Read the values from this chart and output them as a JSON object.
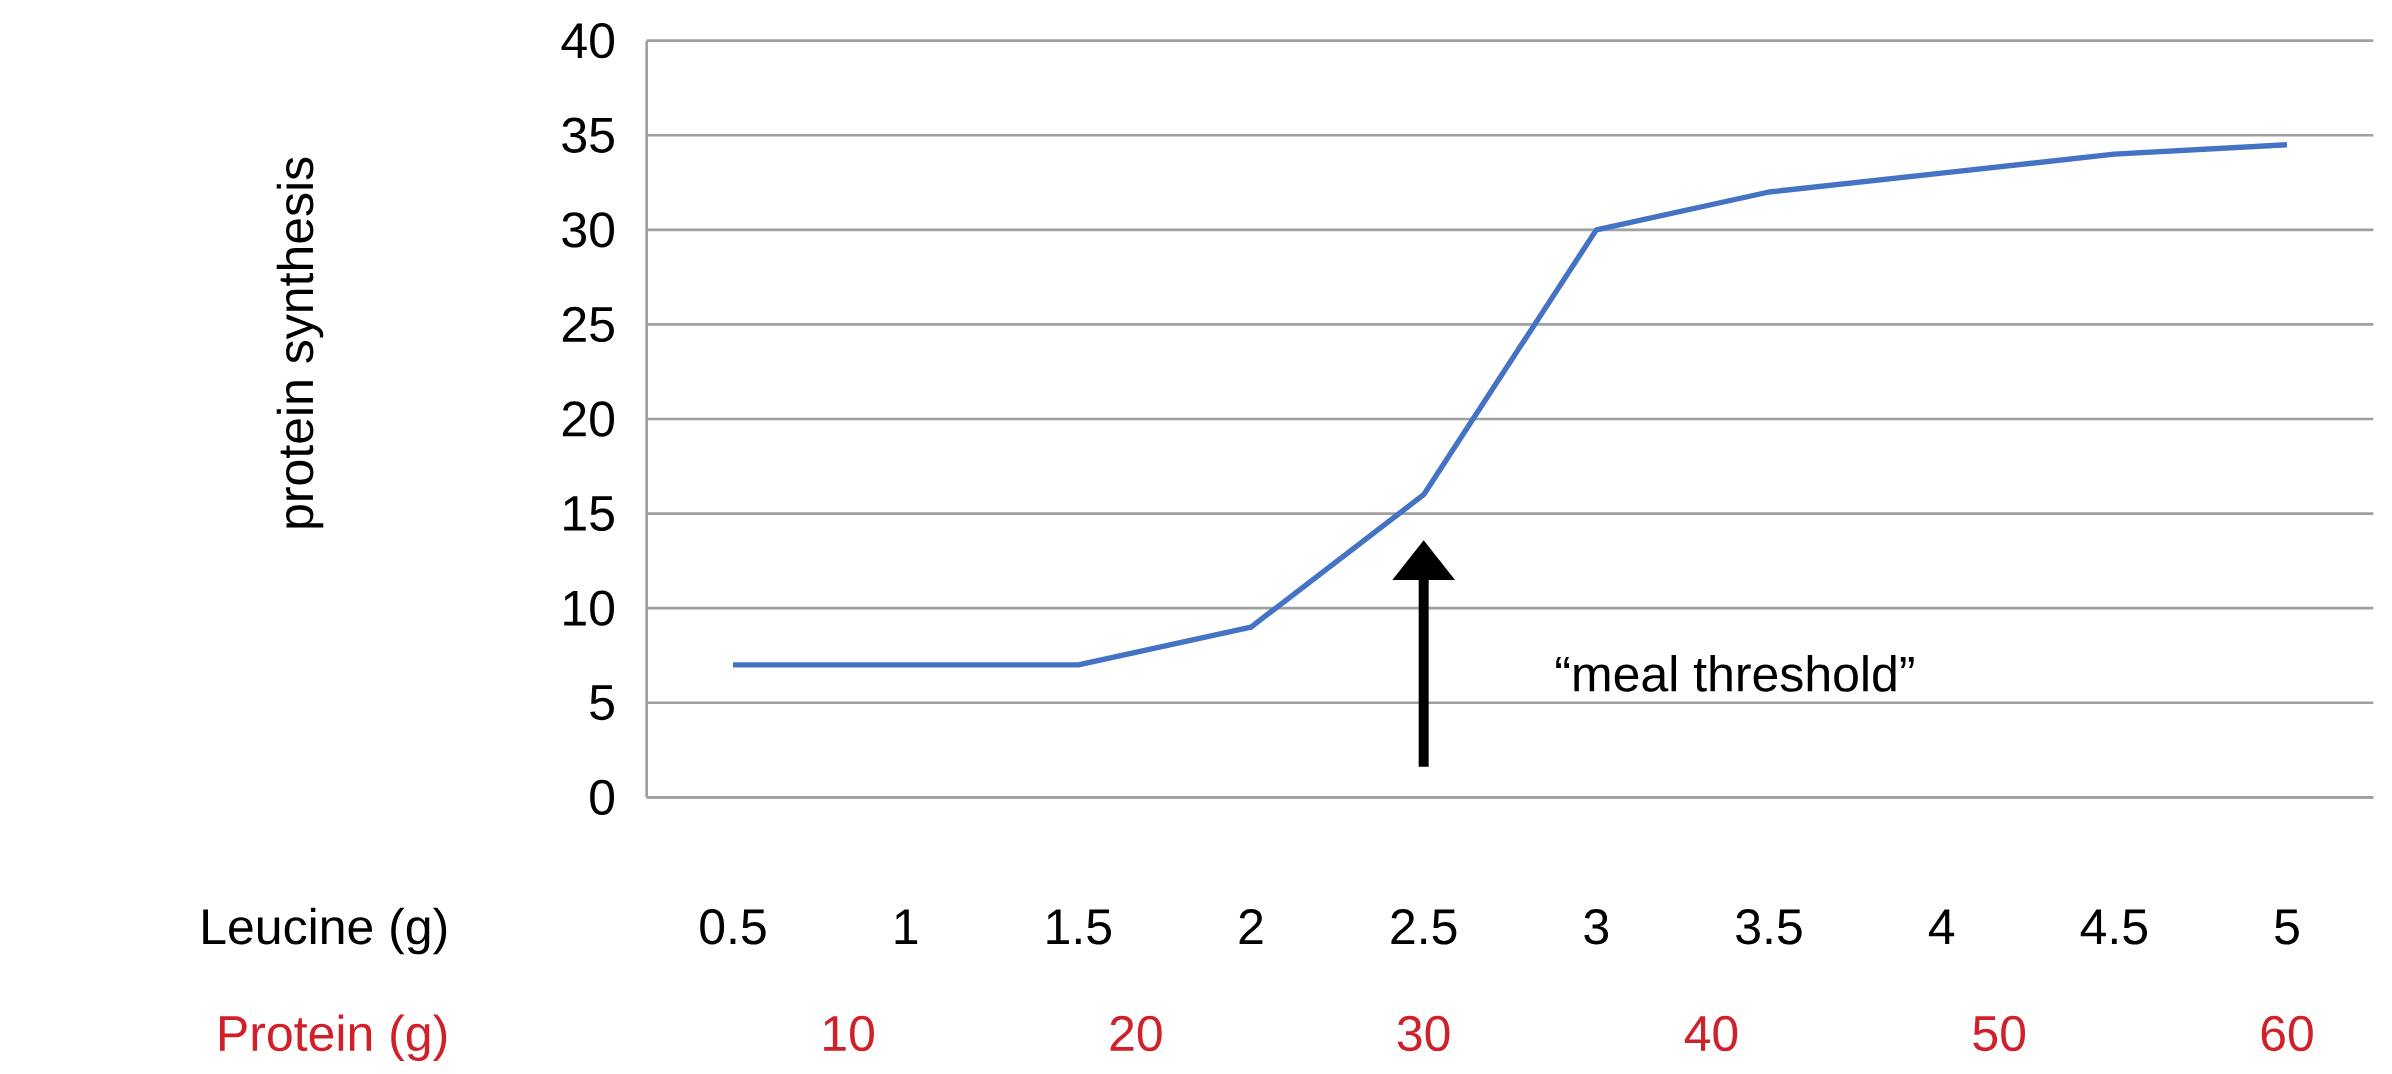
{
  "chart_data": {
    "type": "line",
    "ylabel": "protein synthesis",
    "xlabel": "Leucine (g)",
    "x2label": "Protein (g)",
    "x": [
      0.5,
      1,
      1.5,
      2,
      2.5,
      3,
      3.5,
      4,
      4.5,
      5
    ],
    "series": [
      {
        "color": "#4472c4",
        "values": [
          7,
          7,
          7,
          9,
          16,
          30,
          32,
          33,
          34,
          34.5
        ]
      }
    ],
    "xlim": [
      0.25,
      5.25
    ],
    "xticks": [
      0.5,
      1,
      1.5,
      2,
      2.5,
      3,
      3.5,
      4,
      4.5,
      5
    ],
    "x2lim": [
      3,
      63
    ],
    "x2ticks": [
      10,
      20,
      30,
      40,
      50,
      60
    ],
    "ylim": [
      0,
      40
    ],
    "yticks": [
      0,
      5,
      10,
      15,
      20,
      25,
      30,
      35,
      40
    ],
    "grid": "y",
    "marker": "none",
    "line_style": "solid",
    "annotations": [
      "“meal threshold”"
    ]
  }
}
